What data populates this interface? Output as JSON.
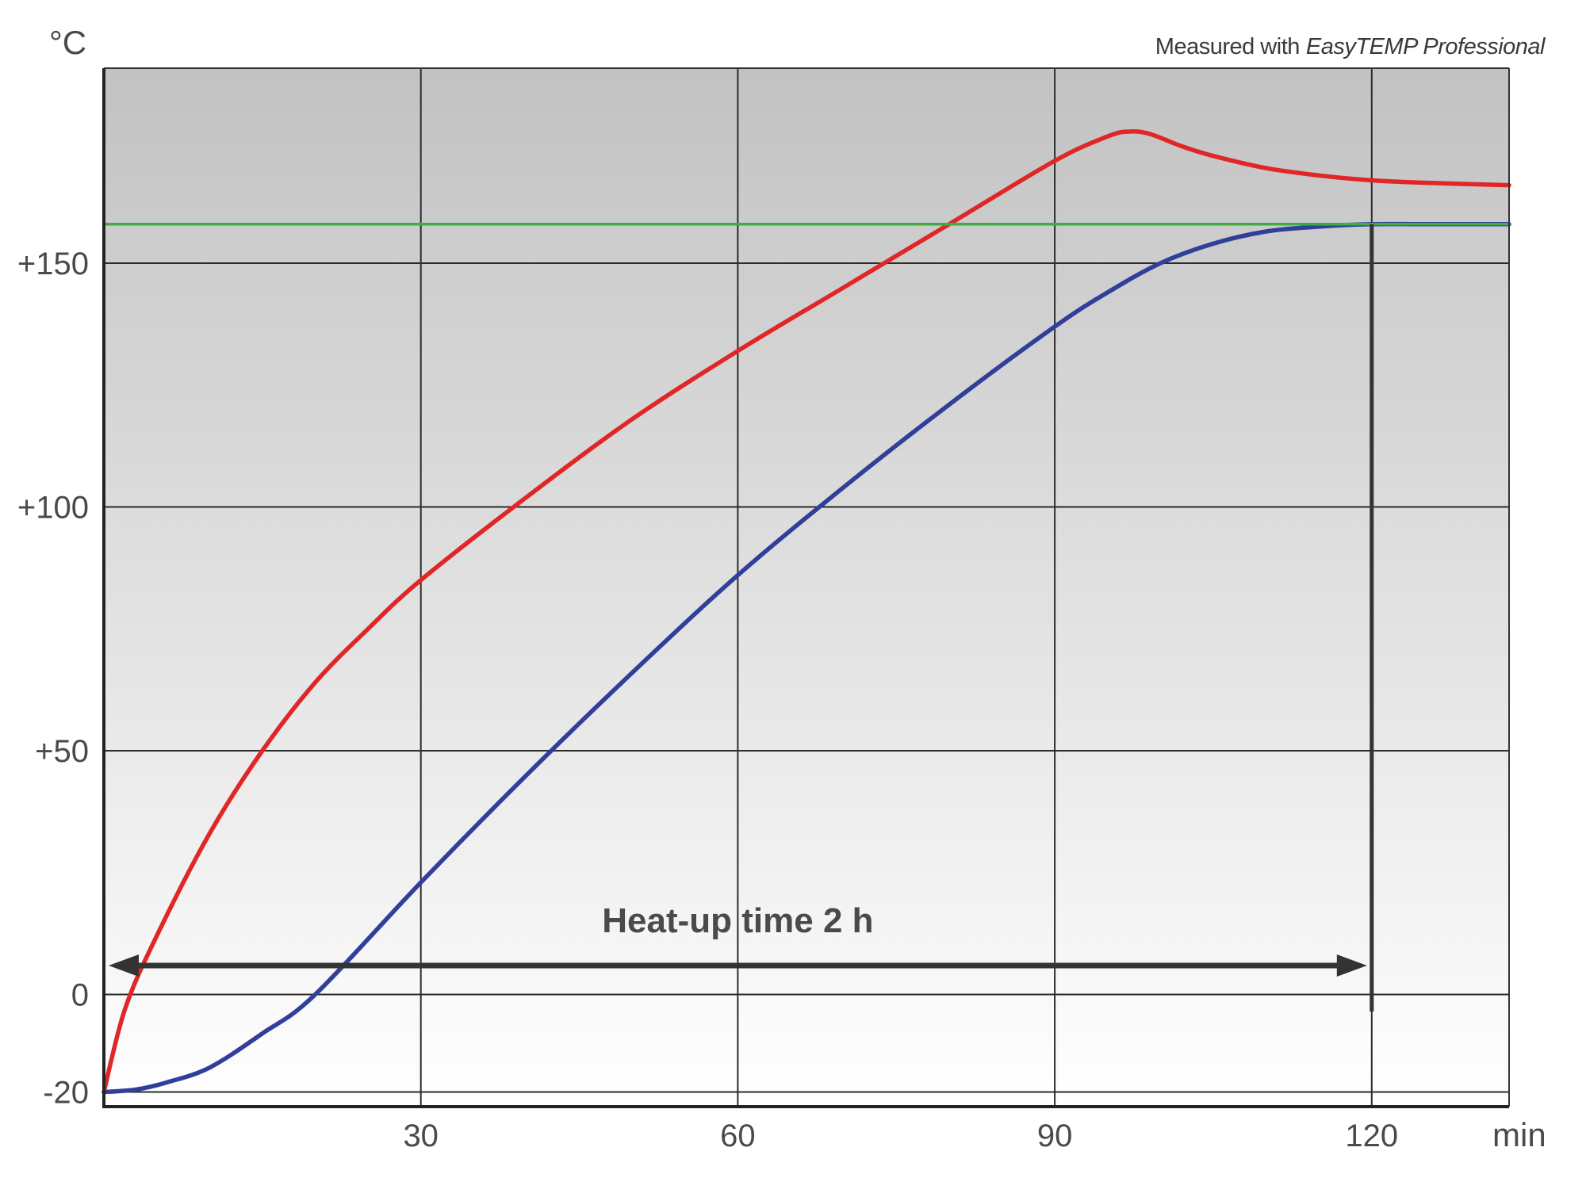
{
  "chart_data": {
    "type": "line",
    "y_unit": "°C",
    "x_unit": "min",
    "credit_prefix": "Measured with",
    "credit_product": "EasyTEMP Professional",
    "annotation": "Heat-up time 2 h",
    "annotation_span_minutes": [
      0,
      120
    ],
    "xlim": [
      0,
      133
    ],
    "ylim": [
      -23,
      190
    ],
    "x_ticks": [
      30,
      60,
      90,
      120
    ],
    "x_tick_labels": [
      "30",
      "60",
      "90",
      "120"
    ],
    "y_ticks": [
      -20,
      0,
      50,
      100,
      150
    ],
    "y_tick_labels": [
      "-20",
      "0",
      "+50",
      "+100",
      "+150"
    ],
    "grid": true,
    "colors": {
      "red_series": "#e02626",
      "blue_series": "#2f3f9a",
      "green_series": "#3fae3f",
      "grid": "#2b2b2b",
      "annotation": "#333333"
    },
    "series": [
      {
        "color_key": "red_series",
        "x": [
          0,
          2,
          5,
          10,
          15,
          20,
          25,
          30,
          40,
          50,
          60,
          70,
          80,
          90,
          95,
          97,
          99,
          102,
          105,
          110,
          115,
          120,
          125,
          133
        ],
        "y": [
          -20,
          -3,
          12,
          33,
          50,
          64,
          75,
          85,
          102,
          118,
          132,
          145,
          158,
          171,
          176,
          177,
          176.5,
          174,
          172,
          169.5,
          168,
          167,
          166.5,
          166
        ]
      },
      {
        "color_key": "blue_series",
        "x": [
          0,
          3,
          6,
          10,
          15,
          20,
          30,
          40,
          50,
          60,
          70,
          80,
          90,
          95,
          100,
          105,
          110,
          115,
          120,
          125,
          133
        ],
        "y": [
          -20,
          -19.5,
          -18,
          -15,
          -8,
          0,
          23,
          45,
          66,
          86,
          104,
          121,
          137,
          144,
          150,
          154,
          156.5,
          157.5,
          158,
          158,
          158
        ]
      },
      {
        "color_key": "green_series",
        "x": [
          0,
          0,
          133
        ],
        "y": [
          -20,
          158,
          158
        ]
      }
    ]
  }
}
